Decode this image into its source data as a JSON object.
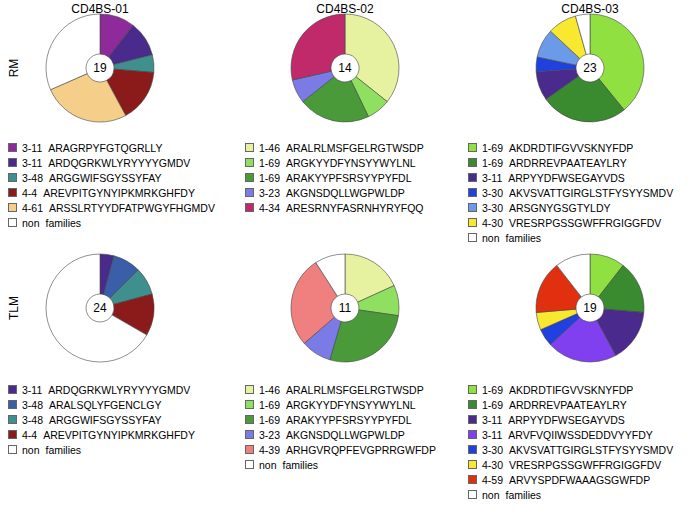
{
  "column_titles": [
    "CD4BS-01",
    "CD4BS-02",
    "CD4BS-03"
  ],
  "row_labels": [
    "RM",
    "TLM"
  ],
  "chart_data": [
    {
      "type": "pie",
      "total": 19,
      "categories": [
        "3-11 ARAGRPYFGTQGRLLY",
        "3-11 ARDQGRKWLYRYYYYGMDV",
        "3-48 ARGGWIFSGYSSYFAY",
        "4-4 AREVPITGYNYIPKMRKGHFDY",
        "4-61 ARSSLRTYYDFATPWGYFHGMDV",
        "non families"
      ],
      "values": [
        2,
        2,
        1,
        3,
        5,
        6
      ],
      "colors": [
        "#8e2a9a",
        "#4a2a8c",
        "#3f8f8f",
        "#8b1a1a",
        "#f5cf8a",
        "#ffffff"
      ]
    },
    {
      "type": "pie",
      "total": 14,
      "categories": [
        "1-46 ARALRLMSFGELRGTWSDP",
        "1-69 ARGKYYDFYNSYYWYLNL",
        "1-69 ARAKYYPFSRSYYPYFDL",
        "3-23 AKGNSDQLLWGPWLDP",
        "4-34 ARESRNYFASRNHYRYFQQ"
      ],
      "values": [
        5,
        1,
        3,
        1,
        4
      ],
      "colors": [
        "#e6f2a0",
        "#8fe060",
        "#4a9a3a",
        "#7b7be6",
        "#c02a6a"
      ]
    },
    {
      "type": "pie",
      "total": 23,
      "categories": [
        "1-69 AKDRDTIFGVVSKNYFDP",
        "1-69 ARDRREVPAATEAYLRY",
        "3-11 ARPYYDFWSEGAYVDS",
        "3-30 AKVSVATTGIRGLSTFYSYYSMDV",
        "3-30 ARSGNYGSGTYLDY",
        "4-30 VRESRPGSSGWFFRGIGGFDV",
        "non families"
      ],
      "values": [
        9,
        6,
        2,
        1,
        2,
        2,
        1
      ],
      "colors": [
        "#8fe040",
        "#3a8a30",
        "#4a2a8c",
        "#2040e0",
        "#6a9ae8",
        "#f8e830",
        "#ffffff"
      ]
    },
    {
      "type": "pie",
      "total": 24,
      "categories": [
        "3-11 ARDQGRKWLYRYYYYGMDV",
        "3-48 ARALSQLYFGENCLGY",
        "3-48 ARGGWIFSGYSSYFAY",
        "4-4 AREVPITGYNYIPKMRKGHFDY",
        "non families"
      ],
      "values": [
        1,
        2,
        2,
        3,
        16
      ],
      "colors": [
        "#4a2a8c",
        "#3a5fa8",
        "#3f8f8f",
        "#8b1a1a",
        "#ffffff"
      ]
    },
    {
      "type": "pie",
      "total": 11,
      "categories": [
        "1-46 ARALRLMSFGELRGTWSDP",
        "1-69 ARGKYYDFYNSYYWYLNL",
        "1-69 ARAKYYPFSRSYYPYFDL",
        "3-23 AKGNSDQLLWGPWLDP",
        "4-39 ARHGVRQPFEVGPRRGWFDP",
        "non families"
      ],
      "values": [
        2,
        1,
        3,
        1,
        3,
        1
      ],
      "colors": [
        "#e6f2a0",
        "#8fe060",
        "#4a9a3a",
        "#7b7be6",
        "#f08080",
        "#ffffff"
      ]
    },
    {
      "type": "pie",
      "total": 19,
      "categories": [
        "1-69 AKDRDTIFGVVSKNYFDP",
        "1-69 ARDRREVPAATEAYLRY",
        "3-11 ARPYYDFWSEGAYVDS",
        "3-11 ARVFVQIIWSSDEDDVYYFDY",
        "3-30 AKVSVATTGIRGLSTFYSYYSMDV",
        "4-30 VRESRPGSSGWFFRGIGGFDV",
        "4-59 ARVYSPDFWAAAGSGWFDP",
        "non families"
      ],
      "values": [
        2,
        3,
        3,
        4,
        1,
        1,
        3,
        2
      ],
      "colors": [
        "#8fe040",
        "#3a8a30",
        "#4a2a8c",
        "#8040f0",
        "#2040e0",
        "#f8e830",
        "#e03010",
        "#ffffff"
      ]
    }
  ]
}
